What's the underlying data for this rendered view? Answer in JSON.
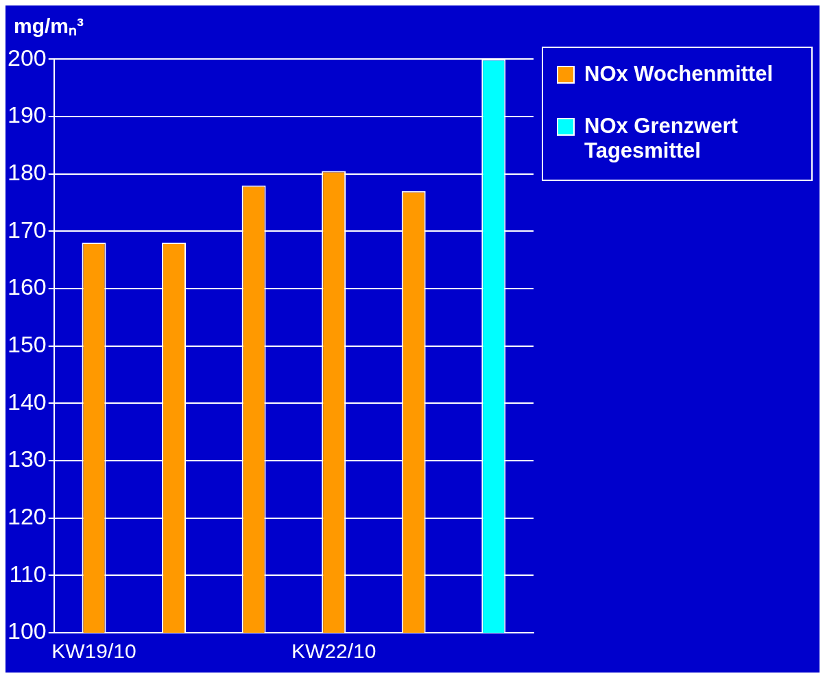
{
  "chart_data": {
    "type": "bar",
    "ylabel": "mg/mₙ³",
    "categories": [
      "KW19/10",
      null,
      null,
      "KW22/10",
      null,
      null
    ],
    "series": [
      {
        "name": "NOx Wochenmittel",
        "color": "#ff9900",
        "values": [
          168,
          168,
          178,
          180.5,
          177,
          null
        ]
      },
      {
        "name": "NOx Grenzwert Tagesmittel",
        "color": "#00ffff",
        "values": [
          null,
          null,
          null,
          null,
          null,
          200
        ]
      }
    ],
    "ylim": [
      100,
      200
    ],
    "yticks": [
      100,
      110,
      120,
      130,
      140,
      150,
      160,
      170,
      180,
      190,
      200
    ],
    "grid": "y",
    "legend": "top right"
  }
}
